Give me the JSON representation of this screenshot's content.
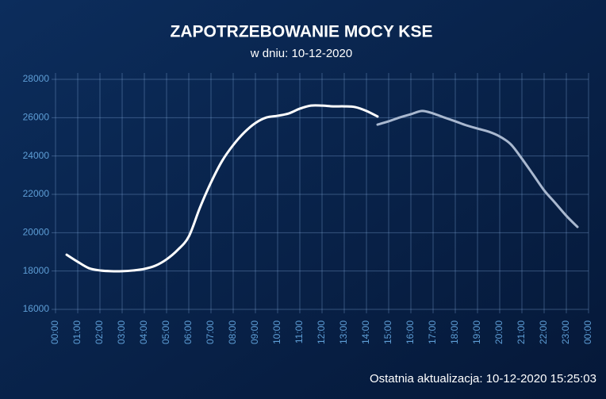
{
  "chart_data": {
    "type": "line",
    "title": "ZAPOTRZEBOWANIE MOCY KSE",
    "subtitle": "w dniu: 10-12-2020",
    "footer": "Ostatnia aktualizacja: 10-12-2020 15:25:03",
    "x": [
      0.5,
      1,
      1.5,
      2,
      2.5,
      3,
      3.5,
      4,
      4.5,
      5,
      5.5,
      6,
      6.5,
      7,
      7.5,
      8,
      8.5,
      9,
      9.5,
      10,
      10.5,
      11,
      11.5,
      12,
      12.5,
      13,
      13.5,
      14,
      14.5,
      15,
      15.5,
      16,
      16.5,
      17,
      17.5,
      18,
      18.5,
      19,
      19.5,
      20,
      20.5,
      21,
      21.5,
      22,
      22.5,
      23,
      23.5
    ],
    "series": [
      {
        "color": "#ffffff",
        "values": [
          18850,
          18480,
          18150,
          18030,
          17990,
          17990,
          18030,
          18110,
          18280,
          18610,
          19100,
          19800,
          21300,
          22620,
          23740,
          24570,
          25230,
          25720,
          26010,
          26100,
          26220,
          26470,
          26630,
          26630,
          26590,
          26590,
          26550,
          26350,
          26060,
          null,
          null,
          null,
          null,
          null,
          null,
          null,
          null,
          null,
          null,
          null,
          null,
          null,
          null,
          null,
          null,
          null,
          null
        ]
      },
      {
        "color": "#a9b8cf",
        "values": [
          null,
          null,
          null,
          null,
          null,
          null,
          null,
          null,
          null,
          null,
          null,
          null,
          null,
          null,
          null,
          null,
          null,
          null,
          null,
          null,
          null,
          null,
          null,
          null,
          null,
          null,
          null,
          null,
          25640,
          25810,
          26010,
          26180,
          26350,
          26220,
          26010,
          25810,
          25600,
          25430,
          25270,
          25020,
          24610,
          23860,
          23040,
          22210,
          21550,
          20880,
          20300
        ]
      }
    ],
    "xlim": [
      0,
      24
    ],
    "xticks": [
      {
        "value": 0,
        "label": "00:00"
      },
      {
        "value": 1,
        "label": "01:00"
      },
      {
        "value": 2,
        "label": "02:00"
      },
      {
        "value": 3,
        "label": "03:00"
      },
      {
        "value": 4,
        "label": "04:00"
      },
      {
        "value": 5,
        "label": "05:00"
      },
      {
        "value": 6,
        "label": "06:00"
      },
      {
        "value": 7,
        "label": "07:00"
      },
      {
        "value": 8,
        "label": "08:00"
      },
      {
        "value": 9,
        "label": "09:00"
      },
      {
        "value": 10,
        "label": "10:00"
      },
      {
        "value": 11,
        "label": "11:00"
      },
      {
        "value": 12,
        "label": "12:00"
      },
      {
        "value": 13,
        "label": "13:00"
      },
      {
        "value": 14,
        "label": "14:00"
      },
      {
        "value": 15,
        "label": "15:00"
      },
      {
        "value": 16,
        "label": "16:00"
      },
      {
        "value": 17,
        "label": "17:00"
      },
      {
        "value": 18,
        "label": "18:00"
      },
      {
        "value": 19,
        "label": "19:00"
      },
      {
        "value": 20,
        "label": "20:00"
      },
      {
        "value": 21,
        "label": "21:00"
      },
      {
        "value": 22,
        "label": "22:00"
      },
      {
        "value": 23,
        "label": "23:00"
      },
      {
        "value": 24,
        "label": "00:00"
      }
    ],
    "ylim": [
      16000,
      28000
    ],
    "yticks": [
      16000,
      18000,
      20000,
      22000,
      24000,
      26000,
      28000
    ],
    "grid": true
  }
}
